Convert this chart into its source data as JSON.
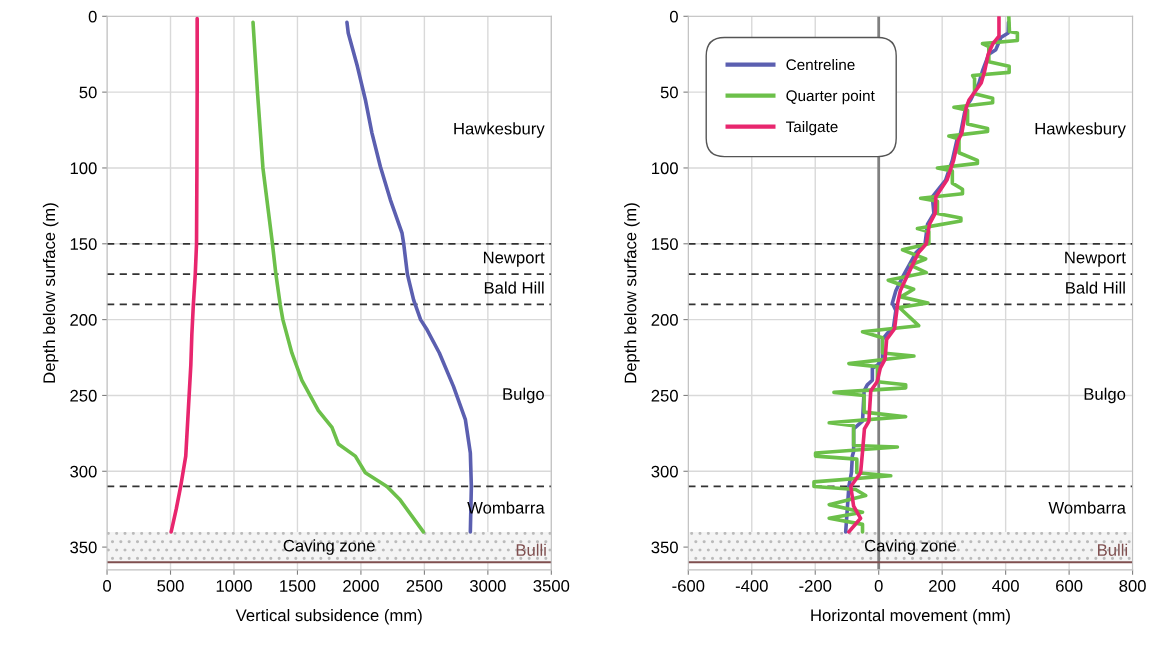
{
  "chart_data": [
    {
      "type": "line",
      "xlabel": "Vertical subsidence (mm)",
      "ylabel": "Depth below surface (m)",
      "xlim": [
        0,
        3500
      ],
      "xticks": [
        0,
        500,
        1000,
        1500,
        2000,
        2500,
        3000,
        3500
      ],
      "ylim": [
        365,
        0
      ],
      "yticks": [
        0,
        50,
        100,
        150,
        200,
        250,
        300,
        350
      ],
      "grid": true,
      "marker": "none",
      "line_style": "solid",
      "series": [
        {
          "color": "#5b5fb0",
          "x": [
            1890,
            1900,
            1972,
            2035,
            2087,
            2153,
            2232,
            2324,
            2337,
            2366,
            2415,
            2470,
            2516,
            2618,
            2729,
            2823,
            2862,
            2870,
            2862
          ],
          "values": [
            4,
            11,
            33,
            55,
            77,
            99,
            121,
            143,
            150,
            170,
            187,
            200,
            206,
            222,
            244,
            266,
            288,
            310,
            340
          ]
        },
        {
          "color": "#6cc04a",
          "x": [
            1150,
            1185,
            1228,
            1303,
            1330,
            1364,
            1385,
            1456,
            1535,
            1665,
            1772,
            1822,
            1956,
            2035,
            2205,
            2310,
            2492
          ],
          "values": [
            4,
            50,
            100,
            150,
            170,
            190,
            200,
            222,
            240,
            260,
            271,
            282,
            290,
            301,
            310,
            319,
            340
          ]
        },
        {
          "color": "#e8266e",
          "x": [
            710,
            710,
            708,
            705,
            695,
            680,
            668,
            660,
            640,
            620,
            600,
            580,
            545,
            505
          ],
          "values": [
            1.5,
            50,
            100,
            150,
            170,
            190,
            210,
            230,
            260,
            290,
            300,
            310,
            325,
            340
          ]
        }
      ],
      "ref_lines": [
        {
          "axis": "y",
          "value": 150,
          "color": "#333333",
          "line_style": "dashed"
        },
        {
          "axis": "y",
          "value": 170,
          "color": "#333333",
          "line_style": "dashed"
        },
        {
          "axis": "y",
          "value": 190,
          "color": "#333333",
          "line_style": "dashed"
        },
        {
          "axis": "y",
          "value": 310,
          "color": "#333333",
          "line_style": "dashed"
        },
        {
          "axis": "y",
          "value": 360,
          "label": "Bulli",
          "color": "#7f4f4f",
          "line_style": "solid"
        }
      ],
      "bands": [
        {
          "axis": "y",
          "from": 340,
          "to": 360,
          "label": "Caving zone",
          "color": "#f4f4f4"
        }
      ],
      "annotations": [
        "Hawkesbury",
        "Newport",
        "Bald Hill",
        "Bulgo",
        "Wombarra"
      ]
    },
    {
      "type": "line",
      "xlabel": "Horizontal movement (mm)",
      "ylabel": "Depth below surface (m)",
      "xlim": [
        -600,
        800
      ],
      "xticks": [
        -600,
        -400,
        -200,
        0,
        200,
        400,
        600,
        800
      ],
      "ylim": [
        365,
        0
      ],
      "yticks": [
        0,
        50,
        100,
        150,
        200,
        250,
        300,
        350
      ],
      "grid": true,
      "legend": "top left",
      "marker": "none",
      "line_style": "solid",
      "series": [
        {
          "name": "Centreline",
          "color": "#5b5fb0",
          "x": [
            409,
            408,
            385,
            369,
            347,
            327,
            316,
            290,
            274,
            258,
            246,
            232,
            211,
            169,
            174,
            154,
            146,
            117,
            75,
            54,
            43,
            54,
            46,
            27,
            12,
            12,
            -4,
            -20,
            -20,
            -36,
            -46,
            -51,
            -79,
            -79,
            -83,
            -86,
            -94,
            -104
          ],
          "values": [
            4,
            11,
            14,
            22,
            25,
            36,
            44,
            55,
            60,
            77,
            82,
            95,
            108,
            119,
            130,
            137,
            150,
            156,
            172,
            181,
            189,
            194,
            206,
            209,
            213,
            226,
            230,
            232,
            240,
            243,
            247,
            267,
            272,
            287,
            290,
            301,
            310,
            340
          ]
        },
        {
          "name": "Quarter point",
          "color": "#6cc04a",
          "x": [
            410,
            412,
            437,
            437,
            327,
            347,
            347,
            411,
            411,
            296,
            302,
            302,
            359,
            359,
            237,
            280,
            280,
            343,
            343,
            221,
            253,
            253,
            311,
            311,
            185,
            232,
            232,
            264,
            264,
            132,
            185,
            185,
            259,
            259,
            122,
            158,
            158,
            75,
            148,
            100,
            150,
            30,
            110,
            70,
            155,
            65,
            126,
            -51,
            12,
            12,
            111,
            -94,
            -4,
            -4,
            85,
            85,
            -141,
            -46,
            -46,
            85,
            -156,
            -79,
            -79,
            59,
            -199,
            -199,
            -69,
            -69,
            38,
            -204,
            -204,
            -73,
            -41,
            -156,
            -51,
            -156,
            -51,
            -51
          ],
          "values": [
            0.4,
            10,
            11,
            16,
            18,
            20,
            30,
            33,
            37,
            39,
            41,
            51,
            54,
            57,
            60,
            62,
            71,
            74,
            76,
            79,
            81,
            90,
            95,
            97,
            100,
            102,
            110,
            114,
            117,
            120,
            122,
            130,
            133,
            135,
            140,
            142,
            150,
            154,
            160,
            164,
            169,
            174,
            180,
            185,
            189,
            192,
            204,
            208,
            212,
            222,
            224,
            229,
            231,
            241,
            243,
            245,
            248,
            250,
            261,
            264,
            268,
            270,
            283,
            284,
            288,
            290,
            292,
            301,
            303,
            307,
            310,
            312,
            316,
            322,
            327,
            331,
            335,
            340
          ]
        },
        {
          "name": "Tailgate",
          "color": "#e8266e",
          "x": [
            379,
            379,
            360,
            345,
            334,
            323,
            285,
            276,
            262,
            250,
            236,
            215,
            180,
            178,
            160,
            150,
            125,
            88,
            68,
            60,
            50,
            25,
            20,
            5,
            -5,
            -25,
            -31,
            -45,
            -51,
            -57,
            -88,
            -79,
            -57,
            -94
          ],
          "values": [
            0.4,
            13,
            18,
            25,
            36,
            44,
            55,
            60,
            77,
            82,
            95,
            108,
            119,
            130,
            137,
            150,
            156,
            172,
            181,
            189,
            206,
            213,
            226,
            232,
            241,
            247,
            267,
            272,
            287,
            301,
            310,
            323,
            331,
            340
          ]
        }
      ],
      "ref_lines": [
        {
          "axis": "x",
          "value": 0,
          "color": "#808080",
          "line_style": "solid"
        },
        {
          "axis": "y",
          "value": 150,
          "color": "#333333",
          "line_style": "dashed"
        },
        {
          "axis": "y",
          "value": 170,
          "color": "#333333",
          "line_style": "dashed"
        },
        {
          "axis": "y",
          "value": 190,
          "color": "#333333",
          "line_style": "dashed"
        },
        {
          "axis": "y",
          "value": 310,
          "color": "#333333",
          "line_style": "dashed"
        },
        {
          "axis": "y",
          "value": 360,
          "label": "Bulli",
          "color": "#7f4f4f",
          "line_style": "solid"
        }
      ],
      "bands": [
        {
          "axis": "y",
          "from": 340,
          "to": 360,
          "label": "Caving zone",
          "color": "#f4f4f4"
        }
      ],
      "annotations": [
        "Hawkesbury",
        "Newport",
        "Bald Hill",
        "Bulgo",
        "Wombarra"
      ]
    }
  ]
}
